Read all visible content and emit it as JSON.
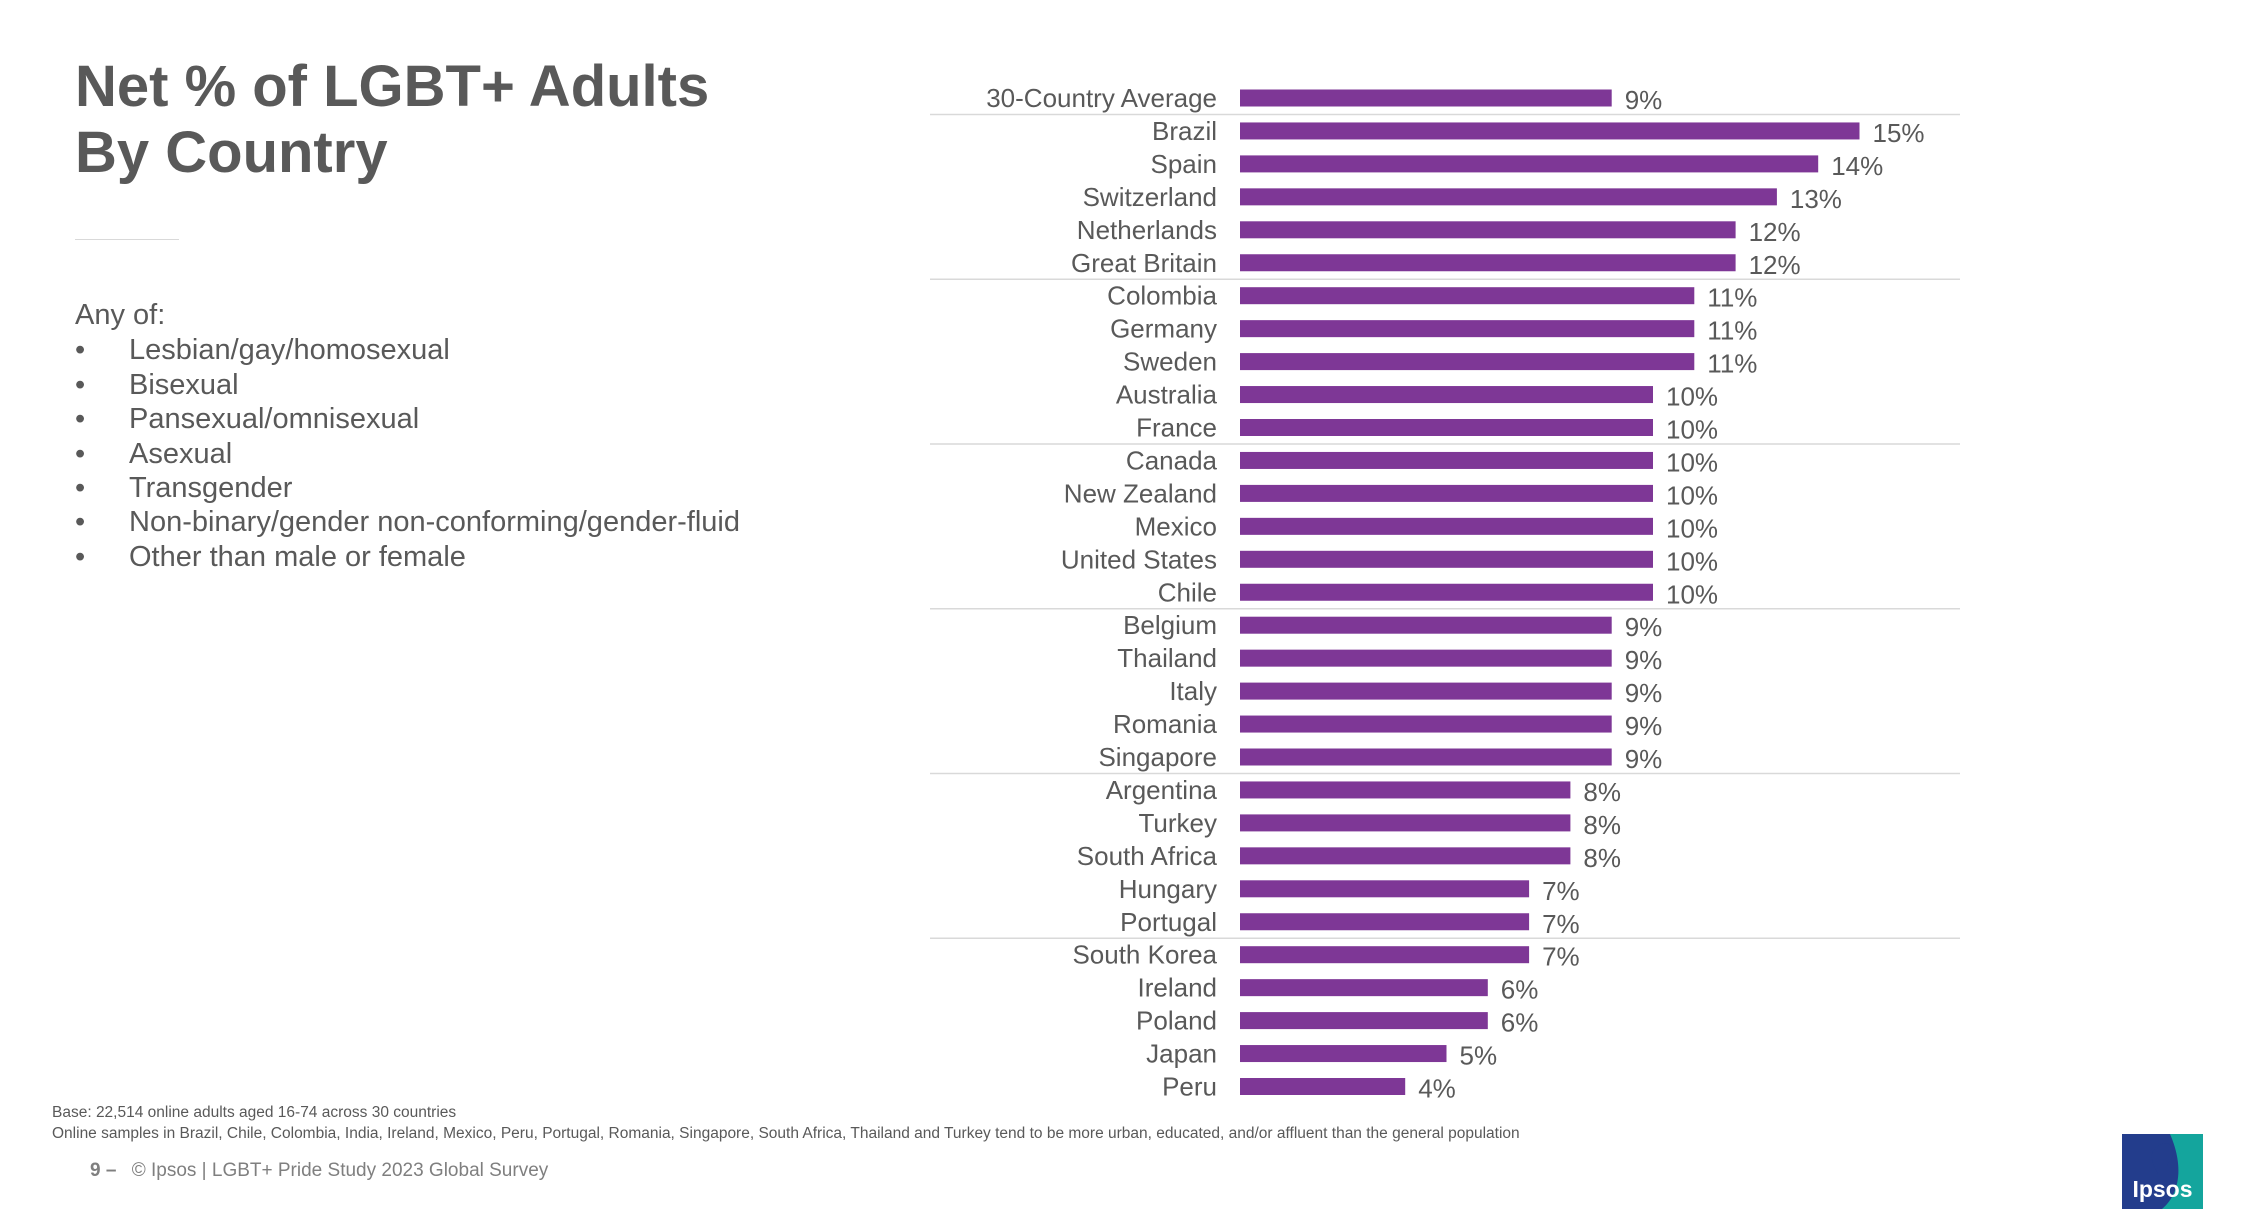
{
  "title": "Net % of LGBT+ Adults By Country",
  "definition": {
    "intro": "Any of:",
    "items": [
      "Lesbian/gay/homosexual",
      "Bisexual",
      "Pansexual/omnisexual",
      "Asexual",
      "Transgender",
      "Non-binary/gender non-conforming/gender-fluid",
      "Other than male or female"
    ]
  },
  "chart_data": {
    "type": "bar",
    "orientation": "horizontal",
    "categories": [
      "30-Country Average",
      "Brazil",
      "Spain",
      "Switzerland",
      "Netherlands",
      "Great Britain",
      "Colombia",
      "Germany",
      "Sweden",
      "Australia",
      "France",
      "Canada",
      "New Zealand",
      "Mexico",
      "United States",
      "Chile",
      "Belgium",
      "Thailand",
      "Italy",
      "Romania",
      "Singapore",
      "Argentina",
      "Turkey",
      "South Africa",
      "Hungary",
      "Portugal",
      "South Korea",
      "Ireland",
      "Poland",
      "Japan",
      "Peru"
    ],
    "values": [
      9,
      15,
      14,
      13,
      12,
      12,
      11,
      11,
      11,
      10,
      10,
      10,
      10,
      10,
      10,
      10,
      9,
      9,
      9,
      9,
      9,
      8,
      8,
      8,
      7,
      7,
      7,
      6,
      6,
      5,
      4
    ],
    "value_labels": [
      "9%",
      "15%",
      "14%",
      "13%",
      "12%",
      "12%",
      "11%",
      "11%",
      "11%",
      "10%",
      "10%",
      "10%",
      "10%",
      "10%",
      "10%",
      "10%",
      "9%",
      "9%",
      "9%",
      "9%",
      "9%",
      "8%",
      "8%",
      "8%",
      "7%",
      "7%",
      "7%",
      "6%",
      "6%",
      "5%",
      "4%"
    ],
    "unit": "%",
    "bar_color": "#7e3796",
    "xlim": [
      0,
      15
    ],
    "grid": false,
    "title": "",
    "xlabel": "",
    "ylabel": ""
  },
  "footnotes": {
    "base": "Base: 22,514 online adults aged 16-74 across 30 countries",
    "samples": "Online samples in Brazil, Chile, Colombia, India, Ireland, Mexico, Peru, Portugal, Romania, Singapore, South Africa, Thailand and Turkey tend to be more urban, educated, and/or affluent than the general population"
  },
  "footer": {
    "page": "9 –",
    "copyright": "© Ipsos | LGBT+ Pride Study 2023 Global Survey"
  },
  "logo": {
    "text": "Ipsos",
    "colors": {
      "primary": "#233d8c",
      "secondary": "#14a59d"
    }
  }
}
